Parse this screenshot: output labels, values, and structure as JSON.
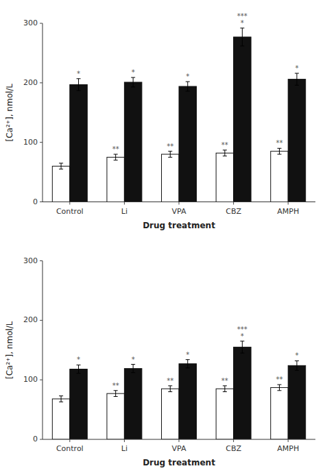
{
  "chart_data": [
    {
      "type": "bar",
      "categories": [
        "Control",
        "Li",
        "VPA",
        "CBZ",
        "AMPH"
      ],
      "series": [
        {
          "color": "#ffffff",
          "values": [
            60,
            75,
            80,
            82,
            85
          ],
          "errors": [
            5,
            5,
            5,
            5,
            5
          ],
          "annotations": [
            null,
            "**",
            "**",
            "**",
            "**"
          ]
        },
        {
          "color": "#111111",
          "values": [
            197,
            201,
            194,
            277,
            206
          ],
          "errors": [
            10,
            8,
            8,
            15,
            10
          ],
          "annotations": [
            "*",
            "*",
            "*",
            "***\n*",
            "*"
          ]
        }
      ],
      "ylim": [
        0,
        300
      ],
      "yticks": [
        0,
        100,
        200,
        300
      ],
      "ylabel": "[Ca²⁺], nmol/L",
      "xlabel": "Drug treatment"
    },
    {
      "type": "bar",
      "categories": [
        "Control",
        "Li",
        "VPA",
        "CBZ",
        "AMPH"
      ],
      "series": [
        {
          "color": "#ffffff",
          "values": [
            68,
            77,
            85,
            85,
            87
          ],
          "errors": [
            5,
            5,
            5,
            5,
            5
          ],
          "annotations": [
            null,
            "**",
            "**",
            "**",
            "**"
          ]
        },
        {
          "color": "#111111",
          "values": [
            118,
            119,
            127,
            155,
            124
          ],
          "errors": [
            7,
            7,
            7,
            10,
            8
          ],
          "annotations": [
            "*",
            "*",
            "*",
            "***\n*",
            "*"
          ]
        }
      ],
      "ylim": [
        0,
        300
      ],
      "yticks": [
        0,
        100,
        200,
        300
      ],
      "ylabel": "[Ca²⁺], nmol/L",
      "xlabel": "Drug treatment"
    }
  ]
}
